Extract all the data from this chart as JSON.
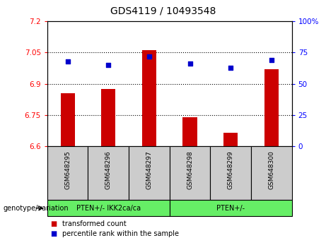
{
  "title": "GDS4119 / 10493548",
  "samples": [
    "GSM648295",
    "GSM648296",
    "GSM648297",
    "GSM648298",
    "GSM648299",
    "GSM648300"
  ],
  "bar_values": [
    6.855,
    6.875,
    7.06,
    6.74,
    6.665,
    6.97
  ],
  "dot_values": [
    68,
    65,
    72,
    66,
    63,
    69
  ],
  "ylim_left": [
    6.6,
    7.2
  ],
  "ylim_right": [
    0,
    100
  ],
  "yticks_left": [
    6.6,
    6.75,
    6.9,
    7.05,
    7.2
  ],
  "yticks_right": [
    0,
    25,
    50,
    75,
    100
  ],
  "ytick_labels_left": [
    "6.6",
    "6.75",
    "6.9",
    "7.05",
    "7.2"
  ],
  "ytick_labels_right": [
    "0",
    "25",
    "50",
    "75",
    "100%"
  ],
  "bar_color": "#cc0000",
  "dot_color": "#0000cc",
  "bar_bottom": 6.6,
  "grid_lines": [
    6.75,
    6.9,
    7.05
  ],
  "group1_label": "PTEN+/- IKK2ca/ca",
  "group2_label": "PTEN+/-",
  "group_box_color": "#66ee66",
  "sample_box_color": "#cccccc",
  "legend_bar_label": "transformed count",
  "legend_dot_label": "percentile rank within the sample",
  "genotype_label": "genotype/variation",
  "figsize": [
    4.61,
    3.54
  ],
  "dpi": 100
}
